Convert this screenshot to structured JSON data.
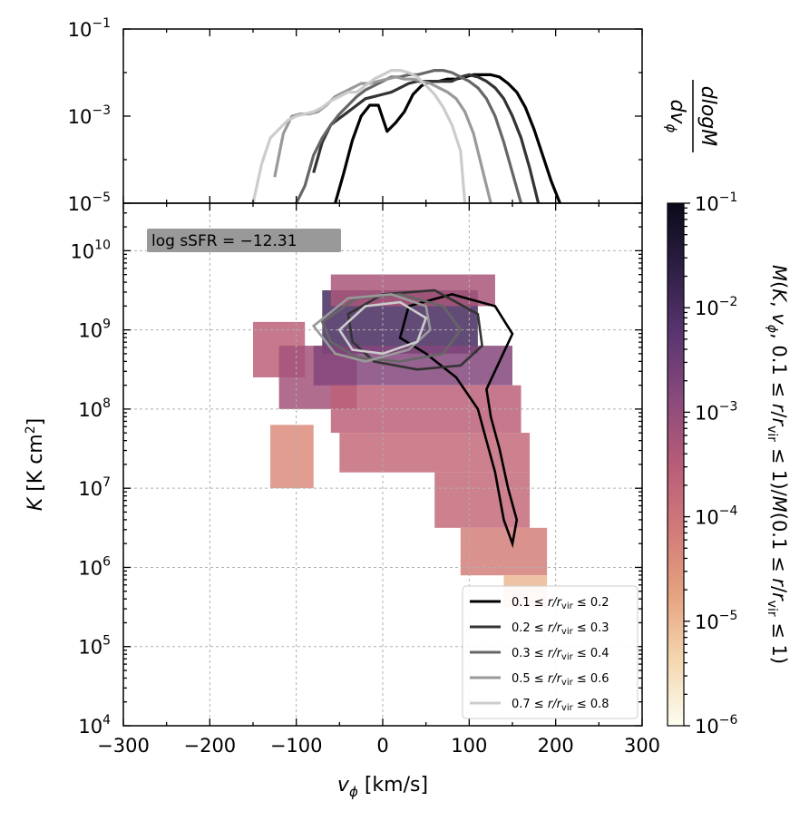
{
  "chart_data": [
    {
      "id": "top-panel",
      "type": "line",
      "xlim": [
        -300,
        300
      ],
      "ylim_log10": [
        -5,
        -1
      ],
      "yscale": "log",
      "ylabel": "dM / dlog v_phi",
      "ytick_labels": [
        {
          "base": "10",
          "exp": "−5",
          "log": -5
        },
        {
          "base": "10",
          "exp": "−3",
          "log": -3
        },
        {
          "base": "10",
          "exp": "−1",
          "log": -1
        }
      ],
      "series": [
        {
          "name": "0.1 ≤ r/r_vir ≤ 0.2",
          "color": "#000000",
          "x": [
            -55,
            -45,
            -35,
            -25,
            -15,
            -5,
            5,
            15,
            25,
            35,
            45,
            55,
            65,
            75,
            85,
            95,
            105,
            115,
            125,
            135,
            145,
            155,
            165,
            175,
            185,
            195,
            205
          ],
          "y_log10": [
            -5.0,
            -4.3,
            -3.55,
            -3.0,
            -2.75,
            -2.75,
            -3.35,
            -3.15,
            -2.9,
            -2.5,
            -2.3,
            -2.2,
            -2.2,
            -2.15,
            -2.15,
            -2.1,
            -2.05,
            -2.05,
            -2.05,
            -2.1,
            -2.25,
            -2.45,
            -2.8,
            -3.3,
            -3.9,
            -4.5,
            -5.0
          ]
        },
        {
          "name": "0.2 ≤ r/r_vir ≤ 0.3",
          "color": "#333333",
          "x": [
            -80,
            -70,
            -60,
            -50,
            -40,
            -30,
            -20,
            -10,
            0,
            10,
            20,
            30,
            40,
            50,
            60,
            70,
            80,
            90,
            100,
            110,
            120,
            130,
            140,
            150,
            160,
            170,
            180
          ],
          "y_log10": [
            -4.3,
            -3.6,
            -3.2,
            -3.05,
            -2.9,
            -2.75,
            -2.6,
            -2.55,
            -2.5,
            -2.45,
            -2.35,
            -2.25,
            -2.2,
            -2.2,
            -2.2,
            -2.2,
            -2.2,
            -2.1,
            -2.05,
            -2.1,
            -2.2,
            -2.35,
            -2.6,
            -3.0,
            -3.5,
            -4.2,
            -5.0
          ]
        },
        {
          "name": "0.3 ≤ r/r_vir ≤ 0.4",
          "color": "#666666",
          "x": [
            -100,
            -90,
            -80,
            -70,
            -60,
            -50,
            -40,
            -30,
            -20,
            -10,
            0,
            10,
            20,
            30,
            40,
            50,
            60,
            70,
            80,
            90,
            100,
            110,
            120,
            130,
            140,
            150,
            160
          ],
          "y_log10": [
            -5.0,
            -4.6,
            -3.9,
            -3.5,
            -3.2,
            -2.95,
            -2.75,
            -2.55,
            -2.4,
            -2.3,
            -2.2,
            -2.1,
            -2.1,
            -2.05,
            -2.05,
            -2.0,
            -1.95,
            -1.95,
            -2.0,
            -2.1,
            -2.2,
            -2.35,
            -2.6,
            -3.0,
            -3.6,
            -4.3,
            -5.0
          ]
        },
        {
          "name": "0.5 ≤ r/r_vir ≤ 0.6",
          "color": "#999999",
          "x": [
            -125,
            -115,
            -105,
            -95,
            -85,
            -75,
            -65,
            -55,
            -45,
            -35,
            -25,
            -15,
            -5,
            5,
            15,
            25,
            35,
            45,
            55,
            65,
            75,
            85,
            95,
            105,
            115,
            125
          ],
          "y_log10": [
            -4.4,
            -3.4,
            -3.0,
            -2.95,
            -2.95,
            -2.9,
            -2.75,
            -2.55,
            -2.45,
            -2.35,
            -2.25,
            -2.25,
            -2.2,
            -2.15,
            -2.1,
            -2.15,
            -2.15,
            -2.2,
            -2.25,
            -2.35,
            -2.45,
            -2.6,
            -2.9,
            -3.4,
            -4.2,
            -5.0
          ]
        },
        {
          "name": "0.7 ≤ r/r_vir ≤ 0.8",
          "color": "#cccccc",
          "x": [
            -150,
            -140,
            -130,
            -120,
            -110,
            -100,
            -90,
            -80,
            -70,
            -60,
            -50,
            -40,
            -30,
            -20,
            -10,
            0,
            10,
            20,
            30,
            40,
            50,
            60,
            70,
            80,
            90,
            95
          ],
          "y_log10": [
            -5.0,
            -4.1,
            -3.5,
            -3.3,
            -3.1,
            -3.0,
            -2.95,
            -2.9,
            -2.8,
            -2.65,
            -2.55,
            -2.45,
            -2.45,
            -2.3,
            -2.15,
            -2.05,
            -1.95,
            -1.95,
            -2.0,
            -2.1,
            -2.3,
            -2.5,
            -2.8,
            -3.2,
            -3.8,
            -5.0
          ]
        }
      ]
    },
    {
      "id": "main-panel",
      "type": "heatmap",
      "xlabel": "v_phi [km/s]",
      "ylabel": "K [K cm²]",
      "xlim": [
        -300,
        300
      ],
      "ylim_log10": [
        4,
        10.6
      ],
      "yscale": "log",
      "grid": true,
      "xtick_labels": [
        "−300",
        "−200",
        "−100",
        "0",
        "100",
        "200",
        "300"
      ],
      "xtick_values": [
        -300,
        -200,
        -100,
        0,
        100,
        200,
        300
      ],
      "ytick_labels": [
        {
          "base": "10",
          "exp": "4",
          "log": 4
        },
        {
          "base": "10",
          "exp": "5",
          "log": 5
        },
        {
          "base": "10",
          "exp": "6",
          "log": 6
        },
        {
          "base": "10",
          "exp": "7",
          "log": 7
        },
        {
          "base": "10",
          "exp": "8",
          "log": 8
        },
        {
          "base": "10",
          "exp": "9",
          "log": 9
        },
        {
          "base": "10",
          "exp": "10",
          "log": 10
        }
      ],
      "annotation": "log sSFR = −12.31",
      "annotation_position": "top-left",
      "heatmap_cells": [
        {
          "x": -150,
          "xmax": -90,
          "y_log10": 8.4,
          "ymax_log10": 9.1,
          "value_log10": -3.6
        },
        {
          "x": -120,
          "xmax": -30,
          "y_log10": 8.0,
          "ymax_log10": 8.8,
          "value_log10": -3.2
        },
        {
          "x": -70,
          "xmax": 110,
          "y_log10": 8.7,
          "ymax_log10": 9.5,
          "value_log10": -2.0
        },
        {
          "x": -60,
          "xmax": 130,
          "y_log10": 9.3,
          "ymax_log10": 9.7,
          "value_log10": -3.3
        },
        {
          "x": -80,
          "xmax": 150,
          "y_log10": 8.3,
          "ymax_log10": 8.8,
          "value_log10": -2.8
        },
        {
          "x": -60,
          "xmax": 160,
          "y_log10": 7.7,
          "ymax_log10": 8.3,
          "value_log10": -3.6
        },
        {
          "x": -50,
          "xmax": 170,
          "y_log10": 7.2,
          "ymax_log10": 7.7,
          "value_log10": -3.8
        },
        {
          "x": 60,
          "xmax": 170,
          "y_log10": 6.5,
          "ymax_log10": 7.2,
          "value_log10": -3.8
        },
        {
          "x": 90,
          "xmax": 190,
          "y_log10": 5.9,
          "ymax_log10": 6.5,
          "value_log10": -4.2
        },
        {
          "x": -130,
          "xmax": -80,
          "y_log10": 7.0,
          "ymax_log10": 7.8,
          "value_log10": -4.4
        },
        {
          "x": 140,
          "xmax": 190,
          "y_log10": 5.5,
          "ymax_log10": 5.9,
          "value_log10": -5.0
        }
      ],
      "contours": [
        {
          "series": 0,
          "color": "#000000",
          "points": [
            [
              30,
              9.3
            ],
            [
              80,
              9.45
            ],
            [
              130,
              9.3
            ],
            [
              150,
              8.95
            ],
            [
              135,
              8.6
            ],
            [
              120,
              8.25
            ],
            [
              125,
              7.9
            ],
            [
              135,
              7.5
            ],
            [
              145,
              7.0
            ],
            [
              155,
              6.6
            ],
            [
              150,
              6.3
            ],
            [
              140,
              6.6
            ],
            [
              130,
              7.2
            ],
            [
              120,
              7.6
            ],
            [
              110,
              8.0
            ],
            [
              85,
              8.4
            ],
            [
              50,
              8.7
            ],
            [
              20,
              8.9
            ]
          ]
        },
        {
          "series": 1,
          "color": "#333333",
          "points": [
            [
              -40,
              9.2
            ],
            [
              0,
              9.45
            ],
            [
              60,
              9.5
            ],
            [
              110,
              9.2
            ],
            [
              115,
              8.8
            ],
            [
              90,
              8.55
            ],
            [
              40,
              8.5
            ],
            [
              -10,
              8.6
            ],
            [
              -35,
              8.85
            ]
          ]
        },
        {
          "series": 2,
          "color": "#666666",
          "points": [
            [
              -70,
              9.1
            ],
            [
              -30,
              9.4
            ],
            [
              20,
              9.45
            ],
            [
              70,
              9.3
            ],
            [
              90,
              9.0
            ],
            [
              70,
              8.7
            ],
            [
              20,
              8.6
            ],
            [
              -30,
              8.65
            ],
            [
              -60,
              8.85
            ]
          ]
        },
        {
          "series": 3,
          "color": "#999999",
          "points": [
            [
              -80,
              9.05
            ],
            [
              -40,
              9.4
            ],
            [
              10,
              9.45
            ],
            [
              50,
              9.3
            ],
            [
              55,
              9.0
            ],
            [
              30,
              8.75
            ],
            [
              -20,
              8.6
            ],
            [
              -55,
              8.7
            ]
          ]
        },
        {
          "series": 4,
          "color": "#cccccc",
          "points": [
            [
              -50,
              9.0
            ],
            [
              -20,
              9.3
            ],
            [
              20,
              9.35
            ],
            [
              50,
              9.15
            ],
            [
              40,
              8.85
            ],
            [
              0,
              8.7
            ],
            [
              -35,
              8.75
            ]
          ]
        }
      ],
      "legend": {
        "position": "bottom-right",
        "entries": [
          {
            "label": "0.1 ≤ r/r_vir ≤ 0.2",
            "color": "#000000"
          },
          {
            "label": "0.2 ≤ r/r_vir ≤ 0.3",
            "color": "#333333"
          },
          {
            "label": "0.3 ≤ r/r_vir ≤ 0.4",
            "color": "#666666"
          },
          {
            "label": "0.5 ≤ r/r_vir ≤ 0.6",
            "color": "#999999"
          },
          {
            "label": "0.7 ≤ r/r_vir ≤ 0.8",
            "color": "#cccccc"
          }
        ]
      }
    },
    {
      "id": "colorbar",
      "type": "colorbar",
      "scale": "log",
      "range_log10": [
        -6,
        -1
      ],
      "label": "M(K, v_phi, 0.1 ≤ r/r_vir ≤ 1)/M(0.1 ≤ r/r_vir ≤ 1)",
      "tick_labels": [
        {
          "base": "10",
          "exp": "−1",
          "log": -1
        },
        {
          "base": "10",
          "exp": "−2",
          "log": -2
        },
        {
          "base": "10",
          "exp": "−3",
          "log": -3
        },
        {
          "base": "10",
          "exp": "−4",
          "log": -4
        },
        {
          "base": "10",
          "exp": "−5",
          "log": -5
        },
        {
          "base": "10",
          "exp": "−6",
          "log": -6
        }
      ],
      "colormap": [
        "#fcfdf0",
        "#f4d7b0",
        "#e5a37f",
        "#d27a7a",
        "#b85c78",
        "#8a4a7c",
        "#5a3570",
        "#2e1f45",
        "#0a0a1a"
      ]
    }
  ]
}
